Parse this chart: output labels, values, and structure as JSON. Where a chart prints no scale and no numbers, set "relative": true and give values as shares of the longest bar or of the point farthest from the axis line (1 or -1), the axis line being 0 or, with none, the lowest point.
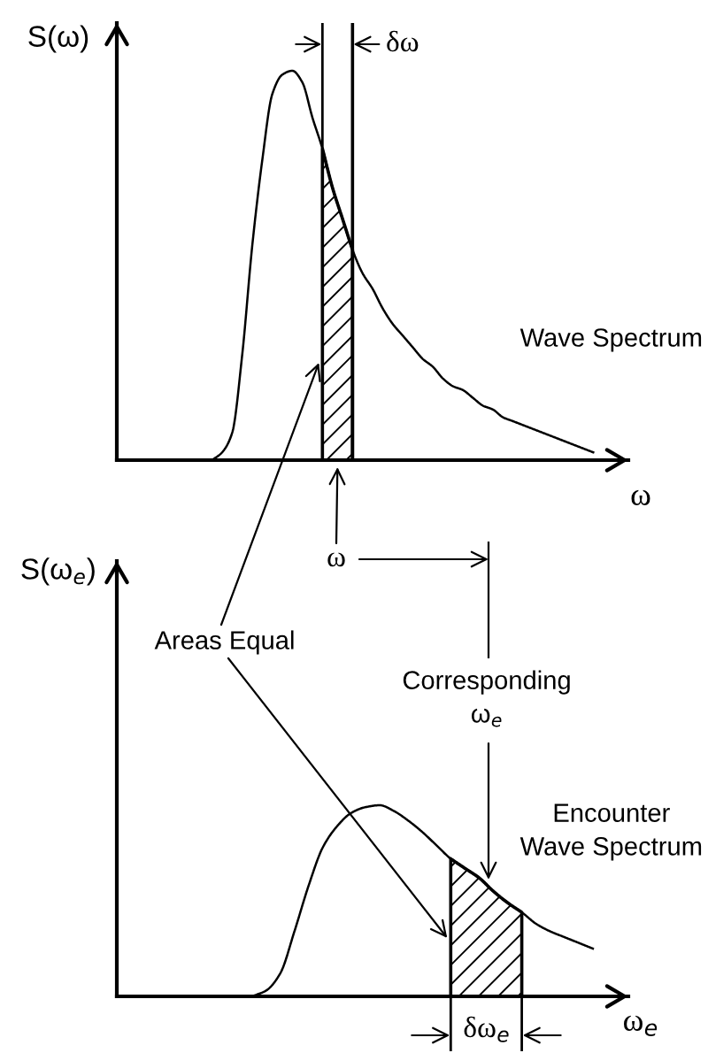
{
  "chart_data": [
    {
      "type": "line",
      "relative": true,
      "ylabel": "S(ω)",
      "xlabel": "ω",
      "categories": [
        null,
        null,
        null,
        null,
        null,
        null,
        null,
        null,
        null,
        null,
        null,
        null,
        null,
        null,
        null,
        null,
        null,
        null,
        null,
        null,
        null,
        null,
        null,
        null,
        null,
        null,
        null,
        null,
        null,
        null,
        null,
        null,
        null,
        null,
        null,
        null,
        null,
        null,
        null,
        null,
        null,
        null,
        null,
        null,
        null,
        null,
        null,
        null,
        null,
        null,
        null
      ],
      "series": [
        {
          "color": "#000000",
          "values": [
            null,
            null,
            null,
            null,
            null,
            null,
            null,
            null,
            null,
            0,
            0.02,
            0.07,
            0.27,
            0.55,
            0.77,
            0.94,
            0.99,
            1,
            0.97,
            0.88,
            0.8,
            0.7,
            0.62,
            0.54,
            0.48,
            0.44,
            0.39,
            0.35,
            0.32,
            0.29,
            0.26,
            0.24,
            0.21,
            0.19,
            0.18,
            0.16,
            0.14,
            0.13,
            0.11,
            0.1,
            0.09,
            0.08,
            0.07,
            0.06,
            0.05,
            0.04,
            0.03,
            0.02,
            null,
            null,
            null
          ]
        },
        {
          "type": "area",
          "color": "#000000",
          "values": [
            null,
            null,
            null,
            null,
            null,
            null,
            null,
            null,
            null,
            null,
            null,
            null,
            null,
            null,
            null,
            null,
            null,
            null,
            null,
            null,
            0.8,
            0.7,
            0.62,
            0.54,
            null,
            null,
            null,
            null,
            null,
            null,
            null,
            null,
            null,
            null,
            null,
            null,
            null,
            null,
            null,
            null,
            null,
            null,
            null,
            null,
            null,
            null,
            null,
            null,
            null,
            null,
            null
          ]
        }
      ],
      "annotations": [
        "δω",
        "Wave Spectrum",
        "ω"
      ]
    },
    {
      "type": "line",
      "relative": true,
      "ylabel": "S(ω$_{e}$)",
      "xlabel": "ω$_{e}$",
      "categories": [
        null,
        null,
        null,
        null,
        null,
        null,
        null,
        null,
        null,
        null,
        null,
        null,
        null,
        null,
        null,
        null,
        null,
        null,
        null,
        null,
        null,
        null,
        null,
        null,
        null,
        null,
        null,
        null,
        null,
        null,
        null,
        null,
        null,
        null,
        null,
        null
      ],
      "series": [
        {
          "color": "#000000",
          "values": [
            null,
            null,
            null,
            null,
            null,
            null,
            null,
            null,
            null,
            0,
            0.03,
            0.12,
            0.34,
            0.58,
            0.78,
            0.89,
            0.96,
            0.99,
            1,
            0.97,
            0.92,
            0.86,
            0.79,
            0.72,
            0.67,
            0.62,
            0.55,
            0.49,
            0.44,
            0.38,
            0.34,
            0.31,
            0.28,
            0.25,
            null,
            null
          ]
        },
        {
          "type": "area",
          "color": "#000000",
          "values": [
            null,
            null,
            null,
            null,
            null,
            null,
            null,
            null,
            null,
            null,
            null,
            null,
            null,
            null,
            null,
            null,
            null,
            null,
            null,
            null,
            null,
            null,
            null,
            0.72,
            0.67,
            0.62,
            0.55,
            0.49,
            0.44,
            null,
            null,
            null,
            null,
            null,
            null,
            null
          ]
        }
      ],
      "annotations": [
        "Areas Equal",
        "Corresponding\nω$_{e}$",
        "Encounter\nWave Spectrum",
        "δω$_{e}$"
      ]
    }
  ]
}
